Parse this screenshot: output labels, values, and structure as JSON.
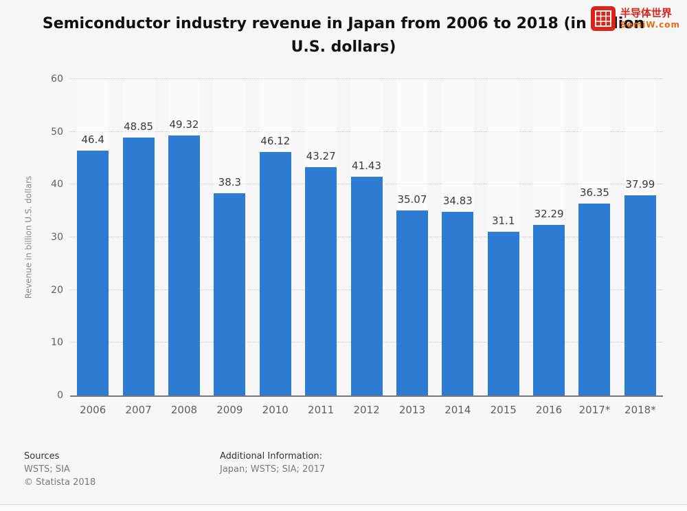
{
  "chart_data": {
    "type": "bar",
    "title": "Semiconductor industry revenue in Japan from 2006 to 2018 (in billion U.S. dollars)",
    "categories": [
      "2006",
      "2007",
      "2008",
      "2009",
      "2010",
      "2011",
      "2012",
      "2013",
      "2014",
      "2015",
      "2016",
      "2017*",
      "2018*"
    ],
    "values": [
      46.4,
      48.85,
      49.32,
      38.3,
      46.12,
      43.27,
      41.43,
      35.07,
      34.83,
      31.1,
      32.29,
      36.35,
      37.99
    ],
    "xlabel": "",
    "ylabel": "Revenue in billion U.S. dollars",
    "ylim": [
      0,
      60
    ],
    "yticks": [
      0,
      10,
      20,
      30,
      40,
      50,
      60
    ],
    "grid": true,
    "legend": false,
    "bar_color": "#2d7bd2"
  },
  "watermark": {
    "line1": "半导体世界",
    "line2": "SemiW.com"
  },
  "footer": {
    "sources_label": "Sources",
    "sources_value": "WSTS; SIA",
    "copyright": "© Statista 2018",
    "additional_label": "Additional Information:",
    "additional_value": "Japan; WSTS; SIA; 2017"
  }
}
